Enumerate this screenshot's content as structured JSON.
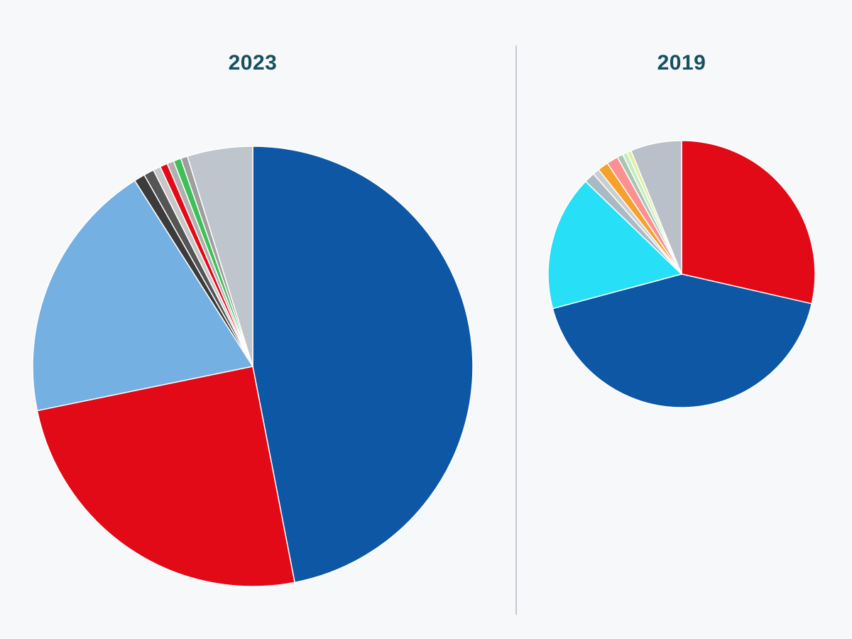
{
  "page": {
    "background_color": "#f6f8fa",
    "divider_color": "#c6c9d2",
    "title_color": "#17505f",
    "slice_border_color": "#ffffff"
  },
  "chart_data": [
    {
      "type": "pie",
      "title": "2023",
      "start_angle_deg": 0,
      "radius_px": 310,
      "legend": "none",
      "slices": [
        {
          "name": "dark-blue",
          "color": "#0d57a5",
          "value": 46.9
        },
        {
          "name": "red",
          "color": "#e20a17",
          "value": 24.8
        },
        {
          "name": "light-blue",
          "color": "#74b0e2",
          "value": 19.2
        },
        {
          "name": "charcoal",
          "color": "#3b3b3b",
          "value": 0.8
        },
        {
          "name": "dark-gray",
          "color": "#555555",
          "value": 0.75
        },
        {
          "name": "light-gray",
          "color": "#c6c6c6",
          "value": 0.55
        },
        {
          "name": "small-red",
          "color": "#e20a17",
          "value": 0.55
        },
        {
          "name": "gray",
          "color": "#b0b0b0",
          "value": 0.5
        },
        {
          "name": "green",
          "color": "#3fbf58",
          "value": 0.55
        },
        {
          "name": "mid-gray",
          "color": "#9e9e9e",
          "value": 0.5
        },
        {
          "name": "silver",
          "color": "#bfc5cc",
          "value": 4.8
        }
      ]
    },
    {
      "type": "pie",
      "title": "2019",
      "start_angle_deg": 0,
      "radius_px": 188,
      "legend": "none",
      "slices": [
        {
          "name": "red",
          "color": "#e20a17",
          "value": 28.6
        },
        {
          "name": "dark-blue",
          "color": "#0d57a5",
          "value": 42.3
        },
        {
          "name": "cyan",
          "color": "#27e0f8",
          "value": 16.4
        },
        {
          "name": "gray-blue",
          "color": "#a9bac2",
          "value": 1.3
        },
        {
          "name": "silver-gray",
          "color": "#c9ced2",
          "value": 0.8
        },
        {
          "name": "orange",
          "color": "#f5a12d",
          "value": 1.3
        },
        {
          "name": "salmon",
          "color": "#fb9090",
          "value": 1.4
        },
        {
          "name": "sage",
          "color": "#a9c4b3",
          "value": 0.7
        },
        {
          "name": "pale-green",
          "color": "#c5ecc3",
          "value": 0.6
        },
        {
          "name": "pale-yellow-green",
          "color": "#dfef9e",
          "value": 0.5
        },
        {
          "name": "silver",
          "color": "#b9c0c9",
          "value": 6.2
        }
      ]
    }
  ]
}
